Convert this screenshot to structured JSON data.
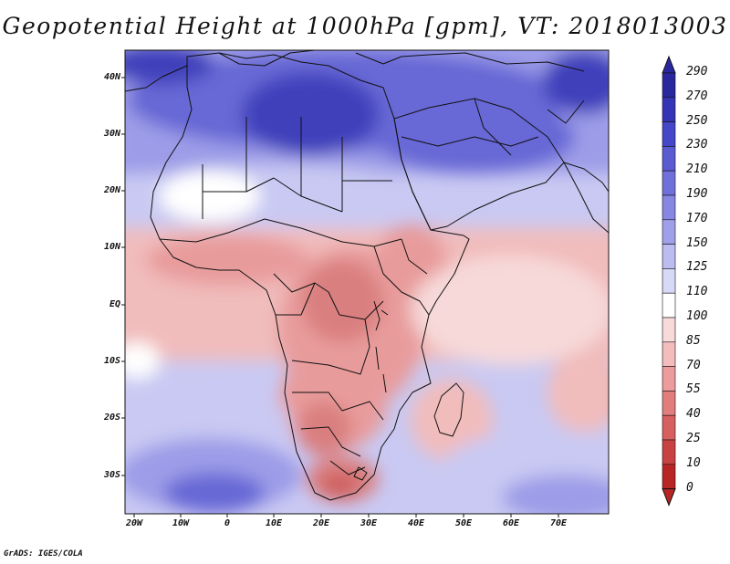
{
  "title": "Geopotential Height at 1000hPa [gpm], VT: 2018013003",
  "credit": "GrADS: IGES/COLA",
  "lat_labels": [
    "40N",
    "30N",
    "20N",
    "10N",
    "EQ",
    "10S",
    "20S",
    "30S"
  ],
  "lon_labels": [
    "20W",
    "10W",
    "0",
    "10E",
    "20E",
    "30E",
    "40E",
    "50E",
    "60E",
    "70E"
  ],
  "colorbar": {
    "levels": [
      "290",
      "270",
      "250",
      "230",
      "210",
      "190",
      "170",
      "150",
      "125",
      "110",
      "100",
      "85",
      "70",
      "55",
      "40",
      "25",
      "10",
      "0"
    ],
    "colors": [
      "#29279d",
      "#3534b6",
      "#4546c8",
      "#5a5ad2",
      "#7070db",
      "#8686e3",
      "#a0a0ea",
      "#bcbcf1",
      "#d8d8f7",
      "#ffffff",
      "#f9dada",
      "#f4bcbc",
      "#ec9c9c",
      "#e27d7d",
      "#d85f5f",
      "#c94141",
      "#b92525"
    ]
  },
  "field_colors": {
    "deep_blue": "#3f40bb",
    "blue": "#6767d6",
    "mid_blue": "#9c9ce8",
    "light_blue": "#c9c9f3",
    "pale_blue": "#e2e2f8",
    "white": "#ffffff",
    "pale_red": "#f7d9d9",
    "light_red": "#f1bcbc",
    "red": "#e89b9b",
    "mid_red": "#da7f7f",
    "deep_red": "#cf5f5f",
    "coast": "#111111"
  }
}
